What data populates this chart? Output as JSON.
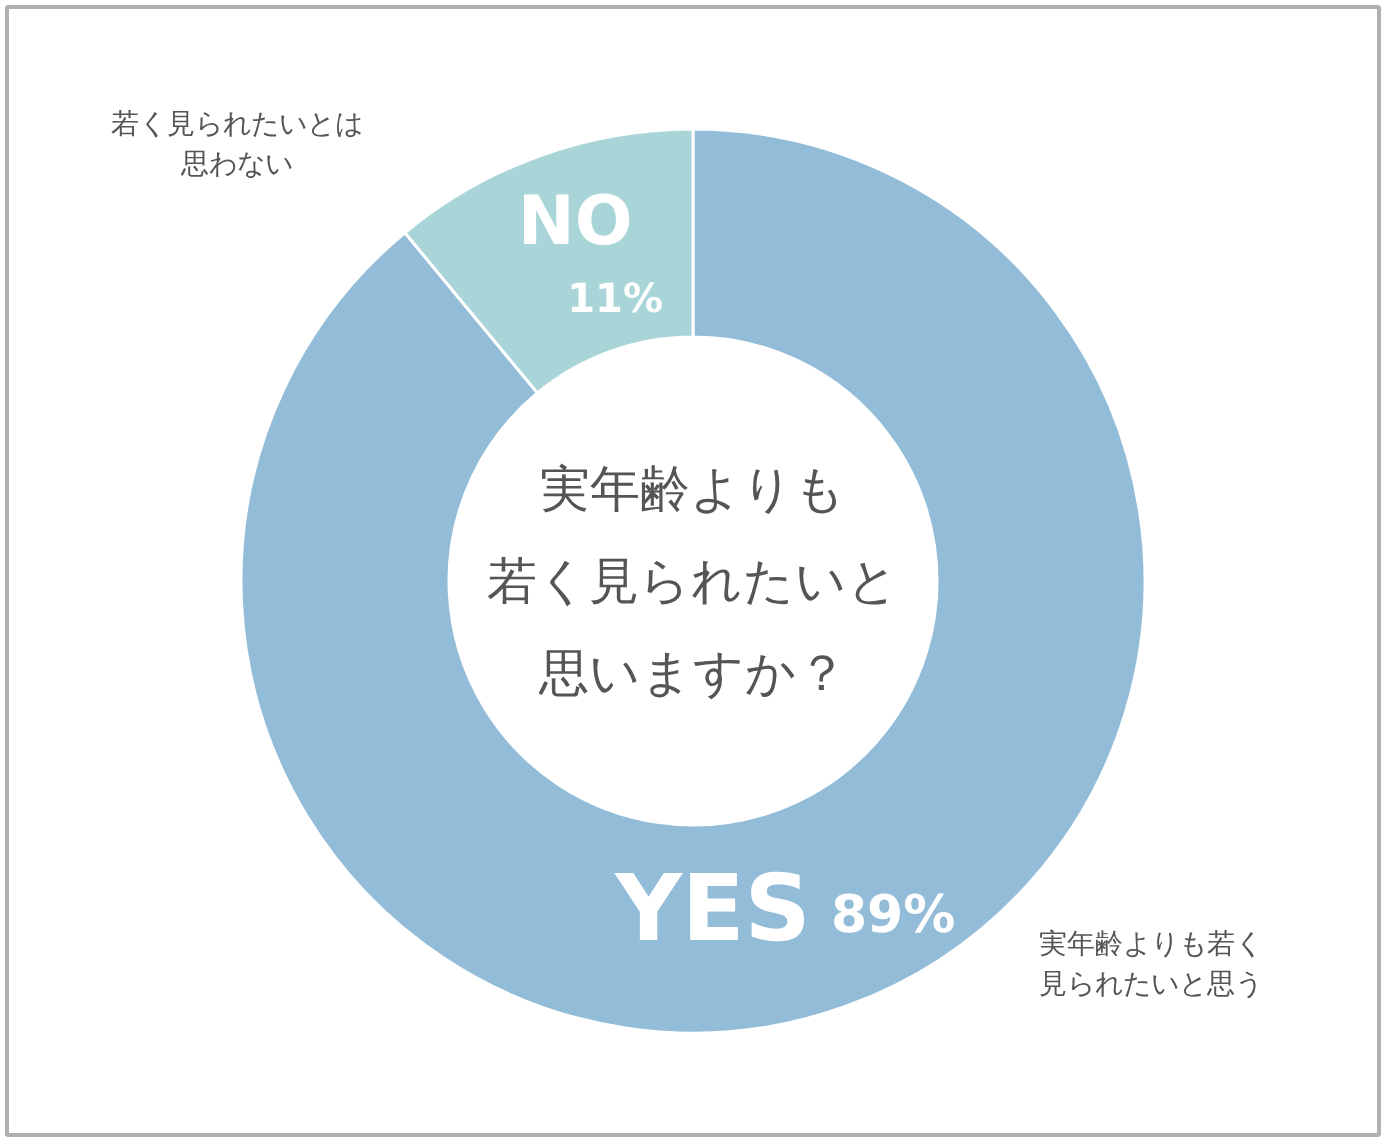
{
  "chart_data": {
    "type": "donut",
    "title": "実年齢よりも若く見られたいと思いますか？",
    "categories": [
      "YES",
      "NO"
    ],
    "values": [
      89,
      11
    ],
    "colors": [
      "#92bcd8",
      "#a9d5d9"
    ],
    "value_labels": [
      "89%",
      "11%"
    ],
    "annotations": [
      "若く見られたいとは思わない",
      "実年齢よりも若く見られたいと思う"
    ]
  }
}
